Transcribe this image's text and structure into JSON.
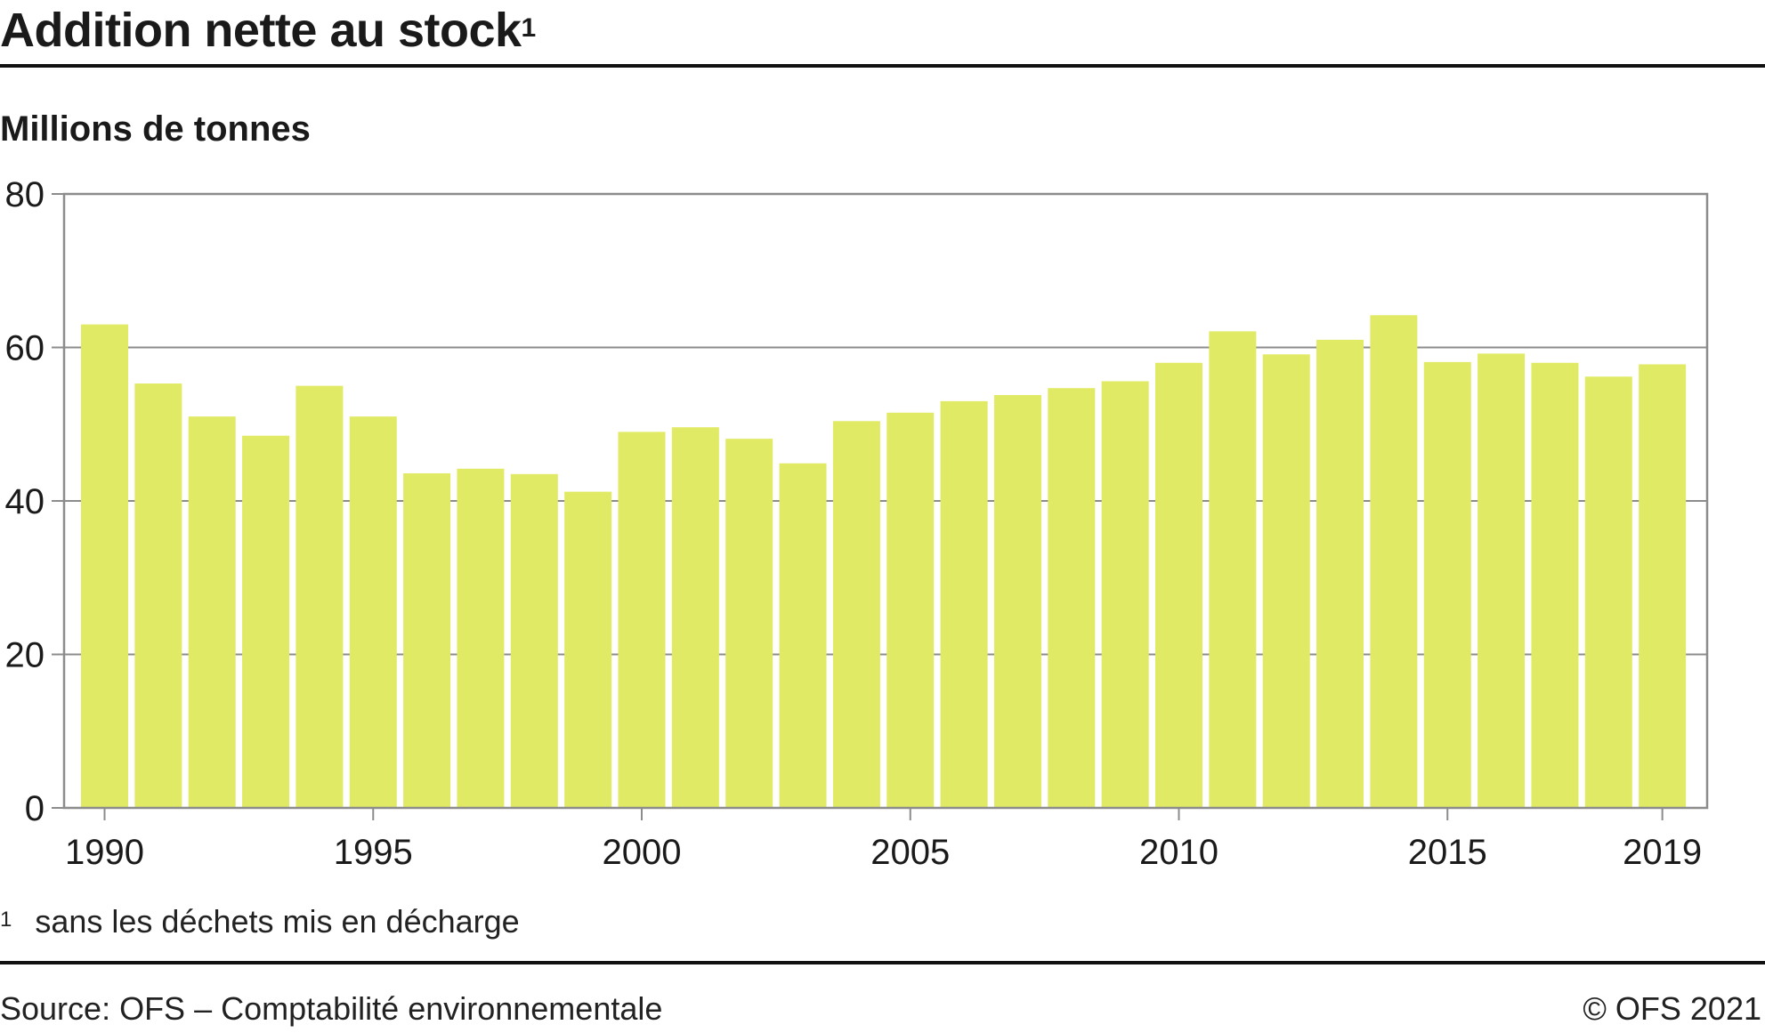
{
  "header": {
    "title": "Addition nette au stock",
    "title_mark": "1"
  },
  "chart_data": {
    "type": "bar",
    "title": "Addition nette au stock¹",
    "ylabel": "Millions de tonnes",
    "xlabel": "",
    "ylim": [
      0,
      80
    ],
    "y_ticks": [
      0,
      20,
      40,
      60,
      80
    ],
    "x_tick_labels": [
      "1990",
      "1995",
      "2000",
      "2005",
      "2010",
      "2015",
      "2019"
    ],
    "grid": true,
    "bar_color": "#e1ea64",
    "categories": [
      "1990",
      "1991",
      "1992",
      "1993",
      "1994",
      "1995",
      "1996",
      "1997",
      "1998",
      "1999",
      "2000",
      "2001",
      "2002",
      "2003",
      "2004",
      "2005",
      "2006",
      "2007",
      "2008",
      "2009",
      "2010",
      "2011",
      "2012",
      "2013",
      "2014",
      "2015",
      "2016",
      "2017",
      "2018",
      "2019"
    ],
    "values": [
      63.0,
      55.3,
      51.0,
      48.5,
      55.0,
      51.0,
      43.6,
      44.2,
      43.5,
      41.2,
      49.0,
      49.6,
      48.1,
      44.9,
      50.4,
      51.5,
      53.0,
      53.8,
      54.7,
      55.6,
      58.0,
      62.1,
      59.1,
      61.0,
      64.2,
      58.1,
      59.2,
      58.0,
      56.2,
      57.8
    ]
  },
  "footnote": {
    "mark": "1",
    "text": "sans les déchets mis en décharge"
  },
  "footer": {
    "source": "Source: OFS – Comptabilité environnementale",
    "copyright": "© OFS 2021"
  }
}
